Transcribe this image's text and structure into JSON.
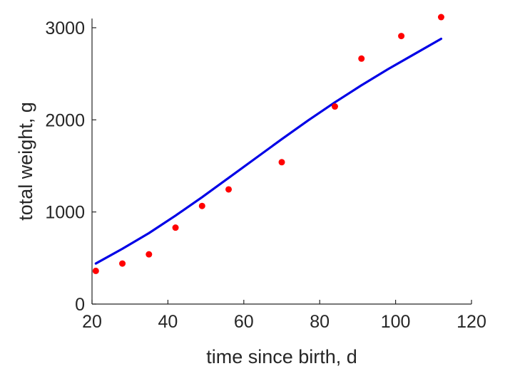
{
  "chart_data": {
    "type": "scatter",
    "xlabel": "time since birth, d",
    "ylabel": "total weight, g",
    "xlim": [
      20,
      120
    ],
    "ylim": [
      0,
      3100
    ],
    "xticks": [
      20,
      40,
      60,
      80,
      100,
      120
    ],
    "yticks": [
      0,
      1000,
      2000,
      3000
    ],
    "grid": false,
    "series": [
      {
        "kind": "points",
        "color": "#ff0000",
        "x": [
          21,
          28,
          35,
          42,
          49,
          56,
          70,
          84,
          91,
          101.5,
          112
        ],
        "y": [
          360,
          440,
          540,
          830,
          1065,
          1245,
          1540,
          2145,
          2665,
          2910,
          3115
        ]
      },
      {
        "kind": "line",
        "color": "#0000e6",
        "x": [
          21,
          28,
          35,
          42,
          49,
          56,
          63,
          70,
          77,
          84,
          91,
          98,
          105,
          112
        ],
        "y": [
          440,
          600,
          770,
          960,
          1160,
          1370,
          1580,
          1790,
          1995,
          2190,
          2375,
          2550,
          2715,
          2880
        ]
      }
    ]
  }
}
